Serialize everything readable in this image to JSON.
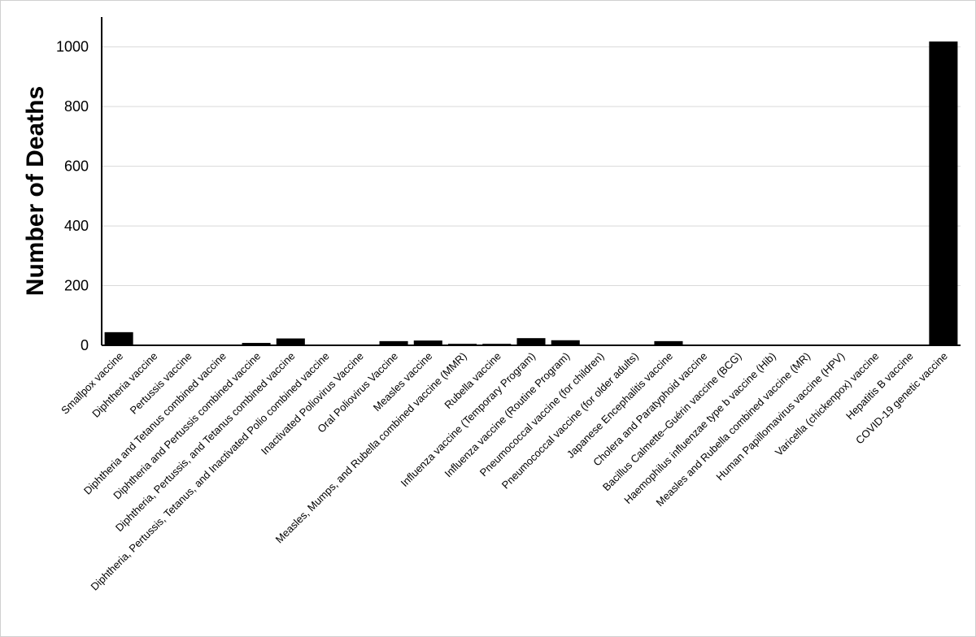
{
  "chart_data": {
    "type": "bar",
    "ylabel": "Number of Deaths",
    "xlabel": "",
    "ylim": [
      0,
      1100
    ],
    "yticks": [
      0,
      200,
      400,
      600,
      800,
      1000
    ],
    "grid": true,
    "bar_color": "#000000",
    "grid_color": "#d9d9d9",
    "categories": [
      "Smallpox vaccine",
      "Diphtheria vaccine",
      "Pertussis vaccine",
      "Diphtheria and Tetanus combined vaccine",
      "Diphtheria and Pertussis combined vaccine",
      "Diphtheria, Pertussis, and Tetanus combined vaccine",
      "Diphtheria, Pertussis, Tetanus, and Inactivated Polio combined vaccine",
      "Inactivated Poliovirus Vaccine",
      "Oral Poliovirus Vaccine",
      "Measles vaccine",
      "Measles, Mumps, and Rubella combined vaccine (MMR)",
      "Rubella vaccine",
      "Influenza vaccine (Temporary Program)",
      "Influenza vaccine (Routine Program)",
      "Pneumococcal vaccine (for children)",
      "Pneumococcal vaccine (for older adults)",
      "Japanese Encephalitis vaccine",
      "Cholera and Paratyphoid vaccine",
      "Bacillus Calmette–Guérin vaccine (BCG)",
      "Haemophilus influenzae type b vaccine (Hib)",
      "Measles and Rubella combined vaccine (MR)",
      "Human Papillomavirus vaccine (HPV)",
      "Varicella (chickenpox) vaccine",
      "Hepatitis B vaccine",
      "COVID-19 genetic vaccine"
    ],
    "values": [
      44,
      0,
      0,
      0,
      8,
      23,
      0,
      0,
      14,
      16,
      5,
      5,
      24,
      17,
      0,
      0,
      14,
      0,
      0,
      0,
      0,
      0,
      0,
      0,
      1018
    ]
  }
}
